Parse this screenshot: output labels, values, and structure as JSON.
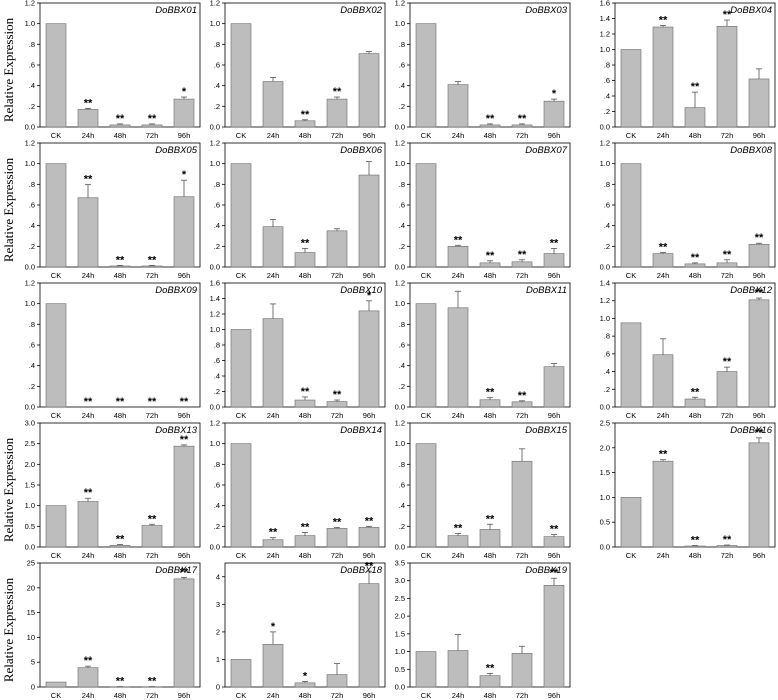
{
  "y_axis_label": "Relative Expression",
  "chart_data": [
    {
      "type": "bar",
      "title": "DoBBX01",
      "categories": [
        "CK",
        "24h",
        "48h",
        "72h",
        "96h"
      ],
      "values": [
        1.0,
        0.17,
        0.02,
        0.02,
        0.27
      ],
      "errors": [
        0,
        0.01,
        0.01,
        0.01,
        0.02
      ],
      "significance": [
        "",
        "**",
        "**",
        "**",
        "*"
      ],
      "ylim": [
        0,
        1.2
      ],
      "yticks": [
        0,
        0.2,
        0.4,
        0.6,
        0.8,
        1.0,
        1.2
      ],
      "ytick_labels": [
        "0.0",
        ".2",
        ".4",
        ".6",
        ".8",
        "1.0",
        "1.2"
      ]
    },
    {
      "type": "bar",
      "title": "DoBBX02",
      "categories": [
        "CK",
        "24h",
        "48h",
        "72h",
        "96h"
      ],
      "values": [
        1.0,
        0.44,
        0.06,
        0.27,
        0.71
      ],
      "errors": [
        0,
        0.04,
        0.01,
        0.02,
        0.02
      ],
      "significance": [
        "",
        "",
        "**",
        "**",
        ""
      ],
      "ylim": [
        0,
        1.2
      ],
      "yticks": [
        0,
        0.2,
        0.4,
        0.6,
        0.8,
        1.0,
        1.2
      ],
      "ytick_labels": [
        "0.0",
        ".2",
        ".4",
        ".6",
        ".8",
        "1.0",
        "1.2"
      ]
    },
    {
      "type": "bar",
      "title": "DoBBX03",
      "categories": [
        "CK",
        "24h",
        "48h",
        "72h",
        "96h"
      ],
      "values": [
        1.0,
        0.41,
        0.02,
        0.02,
        0.25
      ],
      "errors": [
        0,
        0.03,
        0.01,
        0.01,
        0.02
      ],
      "significance": [
        "",
        "",
        "**",
        "**",
        "*"
      ],
      "ylim": [
        0,
        1.2
      ],
      "yticks": [
        0,
        0.2,
        0.4,
        0.6,
        0.8,
        1.0,
        1.2
      ],
      "ytick_labels": [
        "0.0",
        ".2",
        ".4",
        ".6",
        ".8",
        "1.0",
        "1.2"
      ]
    },
    {
      "type": "bar",
      "title": "DoBBX04",
      "categories": [
        "CK",
        "24h",
        "48h",
        "72h",
        "96h"
      ],
      "values": [
        1.0,
        1.29,
        0.25,
        1.3,
        0.62
      ],
      "errors": [
        0,
        0.02,
        0.2,
        0.08,
        0.13
      ],
      "significance": [
        "",
        "**",
        "**",
        "**",
        ""
      ],
      "ylim": [
        0,
        1.6
      ],
      "yticks": [
        0,
        0.2,
        0.4,
        0.6,
        0.8,
        1.0,
        1.2,
        1.4,
        1.6
      ],
      "ytick_labels": [
        "0.0",
        ".2",
        ".4",
        ".6",
        ".8",
        "1.0",
        "1.2",
        "1.4",
        "1.6"
      ]
    },
    {
      "type": "bar",
      "title": "DoBBX05",
      "categories": [
        "CK",
        "24h",
        "48h",
        "72h",
        "96h"
      ],
      "values": [
        1.0,
        0.67,
        0.01,
        0.01,
        0.68
      ],
      "errors": [
        0,
        0.13,
        0.005,
        0.005,
        0.16
      ],
      "significance": [
        "",
        "**",
        "**",
        "**",
        "*"
      ],
      "ylim": [
        0,
        1.2
      ],
      "yticks": [
        0,
        0.2,
        0.4,
        0.6,
        0.8,
        1.0,
        1.2
      ],
      "ytick_labels": [
        "0.0",
        ".2",
        ".4",
        ".6",
        ".8",
        "1.0",
        "1.2"
      ]
    },
    {
      "type": "bar",
      "title": "DoBBX06",
      "categories": [
        "CK",
        "24h",
        "48h",
        "72h",
        "96h"
      ],
      "values": [
        1.0,
        0.39,
        0.14,
        0.35,
        0.89
      ],
      "errors": [
        0,
        0.07,
        0.04,
        0.02,
        0.13
      ],
      "significance": [
        "",
        "",
        "**",
        "",
        ""
      ],
      "ylim": [
        0,
        1.2
      ],
      "yticks": [
        0,
        0.2,
        0.4,
        0.6,
        0.8,
        1.0,
        1.2
      ],
      "ytick_labels": [
        "0.0",
        ".2",
        ".4",
        ".6",
        ".8",
        "1.0",
        "1.2"
      ]
    },
    {
      "type": "bar",
      "title": "DoBBX07",
      "categories": [
        "CK",
        "24h",
        "48h",
        "72h",
        "96h"
      ],
      "values": [
        1.0,
        0.2,
        0.04,
        0.05,
        0.13
      ],
      "errors": [
        0,
        0.01,
        0.02,
        0.02,
        0.05
      ],
      "significance": [
        "",
        "**",
        "**",
        "**",
        "**"
      ],
      "ylim": [
        0,
        1.2
      ],
      "yticks": [
        0,
        0.2,
        0.4,
        0.6,
        0.8,
        1.0,
        1.2
      ],
      "ytick_labels": [
        "0.0",
        ".2",
        ".4",
        ".6",
        ".8",
        "1.0",
        "1.2"
      ]
    },
    {
      "type": "bar",
      "title": "DoBBX08",
      "categories": [
        "CK",
        "24h",
        "48h",
        "72h",
        "96h"
      ],
      "values": [
        1.0,
        0.13,
        0.03,
        0.04,
        0.22
      ],
      "errors": [
        0,
        0.01,
        0.01,
        0.03,
        0.01
      ],
      "significance": [
        "",
        "**",
        "**",
        "**",
        "**"
      ],
      "ylim": [
        0,
        1.2
      ],
      "yticks": [
        0,
        0.2,
        0.4,
        0.6,
        0.8,
        1.0,
        1.2
      ],
      "ytick_labels": [
        "0.0",
        ".2",
        ".4",
        ".6",
        ".8",
        "1.0",
        "1.2"
      ]
    },
    {
      "type": "bar",
      "title": "DoBBX09",
      "categories": [
        "CK",
        "24h",
        "48h",
        "72h",
        "96h"
      ],
      "values": [
        1.0,
        0.0,
        0.0,
        0.0,
        0.0
      ],
      "errors": [
        0,
        0,
        0,
        0,
        0
      ],
      "significance": [
        "",
        "**",
        "**",
        "**",
        "**"
      ],
      "ylim": [
        0,
        1.2
      ],
      "yticks": [
        0,
        0.2,
        0.4,
        0.6,
        0.8,
        1.0,
        1.2
      ],
      "ytick_labels": [
        "0.0",
        ".2",
        ".4",
        ".6",
        ".8",
        "1.0",
        "1.2"
      ]
    },
    {
      "type": "bar",
      "title": "DoBBX10",
      "categories": [
        "CK",
        "24h",
        "48h",
        "72h",
        "96h"
      ],
      "values": [
        1.0,
        1.14,
        0.09,
        0.07,
        1.24
      ],
      "errors": [
        0,
        0.19,
        0.04,
        0.02,
        0.13
      ],
      "significance": [
        "",
        "",
        "**",
        "**",
        "*"
      ],
      "ylim": [
        0,
        1.6
      ],
      "yticks": [
        0,
        0.2,
        0.4,
        0.6,
        0.8,
        1.0,
        1.2,
        1.4,
        1.6
      ],
      "ytick_labels": [
        "0.0",
        ".2",
        ".4",
        ".6",
        ".8",
        "1.0",
        "1.2",
        "1.4",
        "1.6"
      ]
    },
    {
      "type": "bar",
      "title": "DoBBX11",
      "categories": [
        "CK",
        "24h",
        "48h",
        "72h",
        "96h"
      ],
      "values": [
        1.0,
        0.96,
        0.07,
        0.05,
        0.39
      ],
      "errors": [
        0,
        0.16,
        0.02,
        0.01,
        0.03
      ],
      "significance": [
        "",
        "",
        "**",
        "**",
        ""
      ],
      "ylim": [
        0,
        1.2
      ],
      "yticks": [
        0,
        0.2,
        0.4,
        0.6,
        0.8,
        1.0,
        1.2
      ],
      "ytick_labels": [
        "0.0",
        ".2",
        ".4",
        ".6",
        ".8",
        "1.0",
        "1.2"
      ]
    },
    {
      "type": "bar",
      "title": "DoBBX12",
      "categories": [
        "CK",
        "24h",
        "48h",
        "72h",
        "96h"
      ],
      "values": [
        0.95,
        0.59,
        0.09,
        0.4,
        1.21
      ],
      "errors": [
        0,
        0.18,
        0.02,
        0.05,
        0.02
      ],
      "significance": [
        "",
        "",
        "**",
        "**",
        "**"
      ],
      "ylim": [
        0,
        1.4
      ],
      "yticks": [
        0,
        0.2,
        0.4,
        0.6,
        0.8,
        1.0,
        1.2,
        1.4
      ],
      "ytick_labels": [
        "0.0",
        ".2",
        ".4",
        ".6",
        ".8",
        "1.0",
        "1.2",
        "1.4"
      ]
    },
    {
      "type": "bar",
      "title": "DoBBX13",
      "categories": [
        "CK",
        "24h",
        "48h",
        "72h",
        "96h"
      ],
      "values": [
        1.0,
        1.1,
        0.04,
        0.52,
        2.44
      ],
      "errors": [
        0,
        0.08,
        0.02,
        0.03,
        0.03
      ],
      "significance": [
        "",
        "**",
        "**",
        "**",
        "**"
      ],
      "ylim": [
        0,
        3.0
      ],
      "yticks": [
        0,
        0.5,
        1.0,
        1.5,
        2.0,
        2.5,
        3.0
      ],
      "ytick_labels": [
        "0.0",
        "0.5",
        "1.0",
        "1.5",
        "2.0",
        "2.5",
        "3.0"
      ]
    },
    {
      "type": "bar",
      "title": "DoBBX14",
      "categories": [
        "CK",
        "24h",
        "48h",
        "72h",
        "96h"
      ],
      "values": [
        1.0,
        0.07,
        0.11,
        0.18,
        0.19
      ],
      "errors": [
        0,
        0.02,
        0.03,
        0.01,
        0.01
      ],
      "significance": [
        "",
        "**",
        "**",
        "**",
        "**"
      ],
      "ylim": [
        0,
        1.2
      ],
      "yticks": [
        0,
        0.2,
        0.4,
        0.6,
        0.8,
        1.0,
        1.2
      ],
      "ytick_labels": [
        "0.0",
        ".2",
        ".4",
        ".6",
        ".8",
        "1.0",
        "1.2"
      ]
    },
    {
      "type": "bar",
      "title": "DoBBX15",
      "categories": [
        "CK",
        "24h",
        "48h",
        "72h",
        "96h"
      ],
      "values": [
        1.0,
        0.11,
        0.17,
        0.83,
        0.1
      ],
      "errors": [
        0,
        0.02,
        0.05,
        0.12,
        0.02
      ],
      "significance": [
        "",
        "**",
        "**",
        "",
        "**"
      ],
      "ylim": [
        0,
        1.2
      ],
      "yticks": [
        0,
        0.2,
        0.4,
        0.6,
        0.8,
        1.0,
        1.2
      ],
      "ytick_labels": [
        "0.0",
        ".2",
        ".4",
        ".6",
        ".8",
        "1.0",
        "1.2"
      ]
    },
    {
      "type": "bar",
      "title": "DoBBX16",
      "categories": [
        "CK",
        "24h",
        "48h",
        "72h",
        "96h"
      ],
      "values": [
        1.0,
        1.73,
        0.02,
        0.03,
        2.1
      ],
      "errors": [
        0,
        0.03,
        0.01,
        0.01,
        0.1
      ],
      "significance": [
        "",
        "**",
        "**",
        "**",
        "**"
      ],
      "ylim": [
        0,
        2.5
      ],
      "yticks": [
        0,
        0.5,
        1.0,
        1.5,
        2.0,
        2.5
      ],
      "ytick_labels": [
        "0.0",
        "0.5",
        "1.0",
        "1.5",
        "2.0",
        "2.5"
      ]
    },
    {
      "type": "bar",
      "title": "DoBBX17",
      "categories": [
        "CK",
        "24h",
        "48h",
        "72h",
        "96h"
      ],
      "values": [
        1.0,
        3.9,
        0.05,
        0.05,
        21.8
      ],
      "errors": [
        0,
        0.3,
        0.02,
        0.02,
        0.3
      ],
      "significance": [
        "",
        "**",
        "**",
        "**",
        "**"
      ],
      "ylim": [
        0,
        25
      ],
      "yticks": [
        0,
        5,
        10,
        15,
        20,
        25
      ],
      "ytick_labels": [
        "0",
        "5",
        "10",
        "15",
        "20",
        "25"
      ]
    },
    {
      "type": "bar",
      "title": "DoBBX18",
      "categories": [
        "CK",
        "24h",
        "48h",
        "72h",
        "96h"
      ],
      "values": [
        1.0,
        1.55,
        0.15,
        0.45,
        3.75
      ],
      "errors": [
        0,
        0.45,
        0.05,
        0.4,
        0.45
      ],
      "significance": [
        "",
        "*",
        "*",
        "",
        "**"
      ],
      "ylim": [
        0,
        4.5
      ],
      "yticks": [
        0,
        1,
        2,
        3,
        4
      ],
      "ytick_labels": [
        "0",
        "1",
        "2",
        "3",
        "4"
      ]
    },
    {
      "type": "bar",
      "title": "DoBBX19",
      "categories": [
        "CK",
        "24h",
        "48h",
        "72h",
        "96h"
      ],
      "values": [
        1.0,
        1.03,
        0.32,
        0.95,
        2.87
      ],
      "errors": [
        0,
        0.45,
        0.06,
        0.2,
        0.2
      ],
      "significance": [
        "",
        "",
        "**",
        "",
        "**"
      ],
      "ylim": [
        0,
        3.5
      ],
      "yticks": [
        0,
        0.5,
        1.0,
        1.5,
        2.0,
        2.5,
        3.0,
        3.5
      ],
      "ytick_labels": [
        "0.0",
        "0.5",
        "1.0",
        "1.5",
        "2.0",
        "2.5",
        "3.0",
        "3.5"
      ]
    }
  ]
}
